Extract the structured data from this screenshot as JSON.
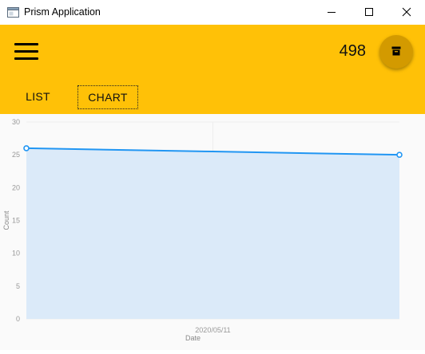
{
  "window": {
    "title": "Prism Application"
  },
  "appbar": {
    "count": "498",
    "background": "#ffc107",
    "fab_icon": "archive-icon",
    "menu_icon": "hamburger-menu-icon"
  },
  "tabs": [
    {
      "label": "LIST",
      "selected": false
    },
    {
      "label": "CHART",
      "selected": true
    }
  ],
  "chart_data": {
    "type": "area",
    "x": [
      "",
      "2020/05/11",
      ""
    ],
    "series": [
      {
        "values": [
          26,
          25.5,
          25
        ],
        "color": "#2196f3",
        "fill": "#dbeaf9"
      }
    ],
    "xlabel": "Date",
    "ylabel": "Count",
    "ylim": [
      0,
      30
    ],
    "yticks": [
      0,
      5,
      10,
      15,
      20,
      25,
      30
    ],
    "xticks": [
      "2020/05/11"
    ],
    "grid": true
  }
}
